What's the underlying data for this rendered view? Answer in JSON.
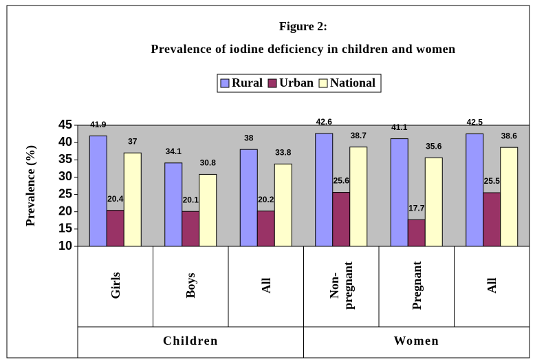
{
  "chart_data": {
    "type": "bar",
    "title": "Figure 2:",
    "subtitle": "Prevalence of iodine deficiency in children and women",
    "y_label": "Prevalence (%)",
    "categories": [
      "Girls",
      "Boys",
      "All",
      "Non-pregnant",
      "Pregnant",
      "All"
    ],
    "groups": [
      "Children",
      "Women"
    ],
    "series": [
      {
        "name": "Rural",
        "color": "#9999ff",
        "values": [
          41.9,
          34.1,
          38,
          42.6,
          41.1,
          42.5
        ]
      },
      {
        "name": "Urban",
        "color": "#993366",
        "values": [
          20.4,
          20.1,
          20.2,
          25.6,
          17.7,
          25.5
        ]
      },
      {
        "name": "National",
        "color": "#ffffcc",
        "values": [
          37,
          30.8,
          33.8,
          38.7,
          35.6,
          38.6
        ]
      }
    ],
    "ylim": [
      10,
      45
    ],
    "yticks": [
      10,
      15,
      20,
      25,
      30,
      35,
      40,
      45
    ],
    "grid": false,
    "plot_background": "#c0c0c0",
    "legend": "top"
  }
}
